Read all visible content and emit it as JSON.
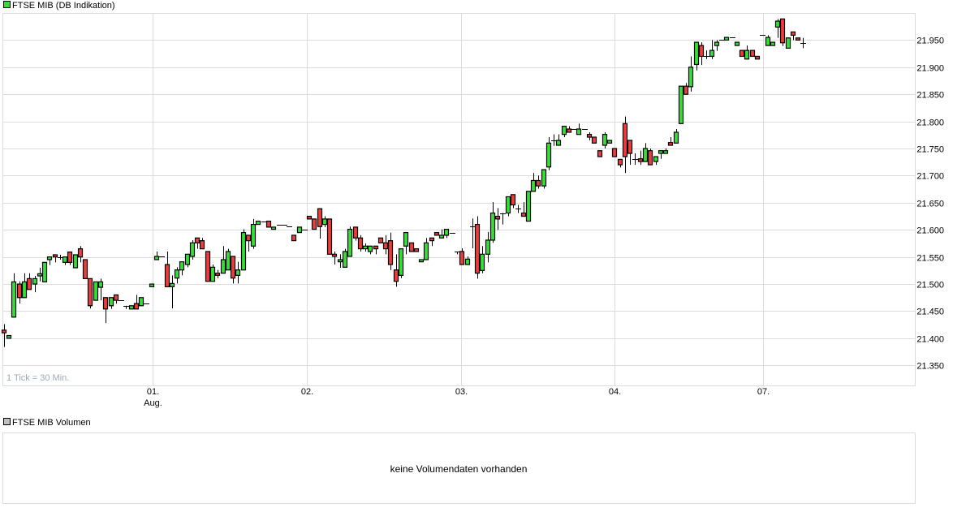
{
  "legend": {
    "price_label": "FTSE MIB (DB Indikation)",
    "price_color": "#33dd33",
    "volume_label": "FTSE MIB Volumen",
    "volume_color": "#c0c0c0"
  },
  "tick_note": "1 Tick = 30 Min.",
  "volume_panel": {
    "message": "keine Volumendaten vorhanden"
  },
  "colors": {
    "up": "#33e033",
    "down": "#ee3b3b",
    "outline": "#000000"
  },
  "chart_data": {
    "type": "candlestick",
    "title": "FTSE MIB (DB Indikation)",
    "interval": "30 Min.",
    "ylim": [
      21.313,
      22.0
    ],
    "xlim": [
      -0.3,
      179.1
    ],
    "yticks": [
      {
        "value": 21.95,
        "label": "21.950"
      },
      {
        "value": 21.9,
        "label": "21.900"
      },
      {
        "value": 21.85,
        "label": "21.850"
      },
      {
        "value": 21.8,
        "label": "21.800"
      },
      {
        "value": 21.75,
        "label": "21.750"
      },
      {
        "value": 21.7,
        "label": "21.700"
      },
      {
        "value": 21.65,
        "label": "21.650"
      },
      {
        "value": 21.6,
        "label": "21.600"
      },
      {
        "value": 21.55,
        "label": "21.550"
      },
      {
        "value": 21.5,
        "label": "21.500"
      },
      {
        "value": 21.45,
        "label": "21.450"
      },
      {
        "value": 21.4,
        "label": "21.400"
      },
      {
        "value": 21.35,
        "label": "21.350"
      }
    ],
    "xticks": [
      {
        "index": 29.2,
        "label": "01.",
        "sublabel": "Aug."
      },
      {
        "index": 59.5,
        "label": "02."
      },
      {
        "index": 89.8,
        "label": "03."
      },
      {
        "index": 119.9,
        "label": "04."
      },
      {
        "index": 149.1,
        "label": "07."
      }
    ],
    "ohlc_fields": [
      "open",
      "high",
      "low",
      "close"
    ],
    "ohlc": [
      [
        21.415,
        21.426,
        21.384,
        21.41
      ],
      [
        21.4,
        21.405,
        21.4,
        21.405
      ],
      [
        21.439,
        21.52,
        21.439,
        21.504
      ],
      [
        21.5,
        21.505,
        21.464,
        21.475
      ],
      [
        21.475,
        21.52,
        21.475,
        21.504
      ],
      [
        21.51,
        21.52,
        21.49,
        21.49
      ],
      [
        21.5,
        21.515,
        21.485,
        21.51
      ],
      [
        21.515,
        21.53,
        21.505,
        21.519
      ],
      [
        21.504,
        21.54,
        21.504,
        21.54
      ],
      [
        21.545,
        21.55,
        21.535,
        21.55
      ],
      [
        21.554,
        21.554,
        21.54,
        21.55
      ],
      [
        21.55,
        21.554,
        21.545,
        21.55
      ],
      [
        21.54,
        21.55,
        21.535,
        21.55
      ],
      [
        21.559,
        21.559,
        21.535,
        21.54
      ],
      [
        21.53,
        21.554,
        21.53,
        21.554
      ],
      [
        21.565,
        21.57,
        21.54,
        21.55
      ],
      [
        21.545,
        21.545,
        21.51,
        21.51
      ],
      [
        21.51,
        21.51,
        21.455,
        21.46
      ],
      [
        21.47,
        21.504,
        21.47,
        21.504
      ],
      [
        21.494,
        21.51,
        21.47,
        21.504
      ],
      [
        21.475,
        21.475,
        21.428,
        21.454
      ],
      [
        21.46,
        21.475,
        21.454,
        21.475
      ],
      [
        21.48,
        21.48,
        21.464,
        21.47
      ],
      [
        21.47,
        21.47,
        21.47,
        21.47
      ],
      [
        21.46,
        21.46,
        21.454,
        21.46
      ],
      [
        21.454,
        21.46,
        21.454,
        21.46
      ],
      [
        21.464,
        21.48,
        21.454,
        21.454
      ],
      [
        21.46,
        21.475,
        21.46,
        21.475
      ],
      [
        21.464,
        21.464,
        21.464,
        21.464
      ],
      [
        21.495,
        21.5,
        21.495,
        21.5
      ],
      [
        21.545,
        21.56,
        21.545,
        21.551
      ],
      [
        21.551,
        21.551,
        21.551,
        21.551
      ],
      [
        21.536,
        21.56,
        21.495,
        21.495
      ],
      [
        21.495,
        21.516,
        21.455,
        21.501
      ],
      [
        21.511,
        21.531,
        21.501,
        21.526
      ],
      [
        21.526,
        21.541,
        21.516,
        21.541
      ],
      [
        21.536,
        21.555,
        21.531,
        21.555
      ],
      [
        21.551,
        21.581,
        21.545,
        21.576
      ],
      [
        21.585,
        21.585,
        21.565,
        21.576
      ],
      [
        21.58,
        21.585,
        21.565,
        21.565
      ],
      [
        21.56,
        21.56,
        21.505,
        21.505
      ],
      [
        21.505,
        21.536,
        21.505,
        21.531
      ],
      [
        21.52,
        21.526,
        21.511,
        21.516
      ],
      [
        21.52,
        21.57,
        21.52,
        21.545
      ],
      [
        21.526,
        21.565,
        21.526,
        21.56
      ],
      [
        21.551,
        21.551,
        21.501,
        21.511
      ],
      [
        21.516,
        21.541,
        21.501,
        21.526
      ],
      [
        21.526,
        21.601,
        21.526,
        21.595
      ],
      [
        21.59,
        21.59,
        21.56,
        21.58
      ],
      [
        21.57,
        21.62,
        21.565,
        21.61
      ],
      [
        21.61,
        21.616,
        21.61,
        21.616
      ],
      [
        21.616,
        21.616,
        21.616,
        21.616
      ],
      [
        21.616,
        21.616,
        21.605,
        21.605
      ],
      [
        21.601,
        21.605,
        21.601,
        21.605
      ],
      [
        21.61,
        21.61,
        21.61,
        21.61
      ],
      [
        21.61,
        21.61,
        21.61,
        21.61
      ],
      [
        21.606,
        21.606,
        21.606,
        21.606
      ],
      [
        21.59,
        21.59,
        21.58,
        21.58
      ],
      [
        21.595,
        21.605,
        21.595,
        21.605
      ],
      [
        21.601,
        21.601,
        21.601,
        21.601
      ],
      [
        21.625,
        21.625,
        21.62,
        21.62
      ],
      [
        21.62,
        21.62,
        21.601,
        21.601
      ],
      [
        21.639,
        21.639,
        21.584,
        21.606
      ],
      [
        21.61,
        21.625,
        21.605,
        21.62
      ],
      [
        21.62,
        21.62,
        21.555,
        21.555
      ],
      [
        21.555,
        21.56,
        21.536,
        21.551
      ],
      [
        21.541,
        21.555,
        21.53,
        21.545
      ],
      [
        21.531,
        21.565,
        21.531,
        21.56
      ],
      [
        21.551,
        21.606,
        21.551,
        21.601
      ],
      [
        21.605,
        21.605,
        21.58,
        21.585
      ],
      [
        21.585,
        21.59,
        21.56,
        21.565
      ],
      [
        21.565,
        21.575,
        21.56,
        21.57
      ],
      [
        21.56,
        21.57,
        21.555,
        21.57
      ],
      [
        21.57,
        21.57,
        21.555,
        21.565
      ],
      [
        21.585,
        21.585,
        21.576,
        21.576
      ],
      [
        21.576,
        21.59,
        21.555,
        21.565
      ],
      [
        21.58,
        21.595,
        21.526,
        21.536
      ],
      [
        21.526,
        21.555,
        21.495,
        21.505
      ],
      [
        21.516,
        21.565,
        21.511,
        21.565
      ],
      [
        21.57,
        21.595,
        21.555,
        21.595
      ],
      [
        21.576,
        21.576,
        21.56,
        21.56
      ],
      [
        21.565,
        21.565,
        21.56,
        21.56
      ],
      [
        21.541,
        21.545,
        21.541,
        21.545
      ],
      [
        21.545,
        21.585,
        21.545,
        21.576
      ],
      [
        21.585,
        21.585,
        21.57,
        21.58
      ],
      [
        21.595,
        21.595,
        21.59,
        21.59
      ],
      [
        21.585,
        21.601,
        21.585,
        21.59
      ],
      [
        21.59,
        21.601,
        21.585,
        21.601
      ],
      [
        21.595,
        21.595,
        21.595,
        21.595
      ],
      [
        21.56,
        21.56,
        21.555,
        21.56
      ],
      [
        21.56,
        21.566,
        21.536,
        21.536
      ],
      [
        21.536,
        21.551,
        21.536,
        21.546
      ],
      [
        21.607,
        21.621,
        21.566,
        21.607
      ],
      [
        21.61,
        21.625,
        21.51,
        21.52
      ],
      [
        21.525,
        21.57,
        21.52,
        21.555
      ],
      [
        21.555,
        21.596,
        21.54,
        21.581
      ],
      [
        21.581,
        21.651,
        21.576,
        21.631
      ],
      [
        21.625,
        21.64,
        21.6,
        21.62
      ],
      [
        21.631,
        21.631,
        21.61,
        21.631
      ],
      [
        21.631,
        21.661,
        21.625,
        21.661
      ],
      [
        21.665,
        21.665,
        21.64,
        21.646
      ],
      [
        21.64,
        21.646,
        21.631,
        21.64
      ],
      [
        21.631,
        21.651,
        21.625,
        21.625
      ],
      [
        21.616,
        21.671,
        21.616,
        21.671
      ],
      [
        21.671,
        21.705,
        21.671,
        21.691
      ],
      [
        21.691,
        21.7,
        21.676,
        21.681
      ],
      [
        21.681,
        21.711,
        21.676,
        21.711
      ],
      [
        21.716,
        21.771,
        21.71,
        21.76
      ],
      [
        21.765,
        21.776,
        21.755,
        21.765
      ],
      [
        21.756,
        21.776,
        21.756,
        21.765
      ],
      [
        21.776,
        21.791,
        21.771,
        21.791
      ],
      [
        21.786,
        21.791,
        21.78,
        21.78
      ],
      [
        21.786,
        21.786,
        21.786,
        21.786
      ],
      [
        21.776,
        21.796,
        21.776,
        21.786
      ],
      [
        21.786,
        21.786,
        21.786,
        21.786
      ],
      [
        21.776,
        21.78,
        21.765,
        21.771
      ],
      [
        21.771,
        21.771,
        21.76,
        21.76
      ],
      [
        21.746,
        21.746,
        21.735,
        21.735
      ],
      [
        21.756,
        21.78,
        21.75,
        21.776
      ],
      [
        21.76,
        21.765,
        21.76,
        21.765
      ],
      [
        21.75,
        21.75,
        21.735,
        21.735
      ],
      [
        21.73,
        21.73,
        21.715,
        21.72
      ],
      [
        21.796,
        21.809,
        21.705,
        21.735
      ],
      [
        21.765,
        21.765,
        21.72,
        21.741
      ],
      [
        21.731,
        21.741,
        21.72,
        21.731
      ],
      [
        21.731,
        21.746,
        21.72,
        21.726
      ],
      [
        21.726,
        21.76,
        21.726,
        21.75
      ],
      [
        21.746,
        21.75,
        21.72,
        21.72
      ],
      [
        21.726,
        21.735,
        21.72,
        21.735
      ],
      [
        21.741,
        21.746,
        21.731,
        21.746
      ],
      [
        21.741,
        21.75,
        21.741,
        21.746
      ],
      [
        21.761,
        21.771,
        21.756,
        21.756
      ],
      [
        21.76,
        21.786,
        21.76,
        21.78
      ],
      [
        21.796,
        21.865,
        21.796,
        21.865
      ],
      [
        21.865,
        21.871,
        21.85,
        21.85
      ],
      [
        21.864,
        21.92,
        21.855,
        21.9
      ],
      [
        21.905,
        21.946,
        21.894,
        21.946
      ],
      [
        21.94,
        21.946,
        21.904,
        21.92
      ],
      [
        21.92,
        21.931,
        21.915,
        21.92
      ],
      [
        21.92,
        21.95,
        21.915,
        21.931
      ],
      [
        21.94,
        21.95,
        21.93,
        21.946
      ],
      [
        21.95,
        21.95,
        21.95,
        21.95
      ],
      [
        21.95,
        21.955,
        21.95,
        21.955
      ],
      [
        21.955,
        21.955,
        21.955,
        21.955
      ],
      [
        21.94,
        21.946,
        21.94,
        21.946
      ],
      [
        21.931,
        21.931,
        21.92,
        21.92
      ],
      [
        21.915,
        21.94,
        21.915,
        21.931
      ],
      [
        21.931,
        21.931,
        21.92,
        21.92
      ],
      [
        21.92,
        21.92,
        21.915,
        21.915
      ],
      [
        21.959,
        21.959,
        21.959,
        21.959
      ],
      [
        21.94,
        21.959,
        21.94,
        21.955
      ],
      [
        21.94,
        21.946,
        21.94,
        21.946
      ],
      [
        21.974,
        21.989,
        21.954,
        21.985
      ],
      [
        21.989,
        21.989,
        21.939,
        21.945
      ],
      [
        21.935,
        21.954,
        21.935,
        21.954
      ],
      [
        21.965,
        21.965,
        21.95,
        21.959
      ],
      [
        21.954,
        21.954,
        21.95,
        21.95
      ],
      [
        21.945,
        21.954,
        21.935,
        21.945
      ]
    ]
  }
}
